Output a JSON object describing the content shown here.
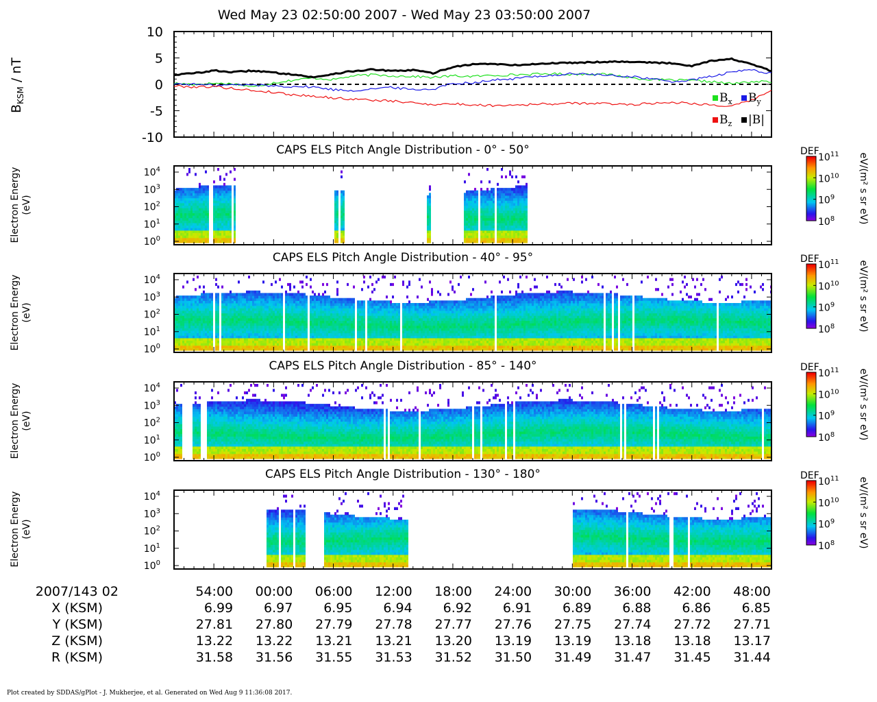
{
  "header": {
    "title": "Wed May 23 02:50:00 2007 - Wed May 23 03:50:00 2007"
  },
  "colors": {
    "bx": "#1ee01e",
    "by": "#1a1ae6",
    "bz": "#ee1111",
    "btot": "#000000"
  },
  "chart_data": [
    {
      "type": "line",
      "ylabel": "B",
      "ylabel_sub": "KSM",
      "ylabel_unit": " / nT",
      "ylim": [
        -10,
        10
      ],
      "yticks": [
        "10",
        "5",
        "0",
        "-5",
        "-10"
      ],
      "x_minutes": [
        0,
        60
      ],
      "legend": [
        {
          "label": "B",
          "sub": "x",
          "color": "#1ee01e"
        },
        {
          "label": "B",
          "sub": "y",
          "color": "#1a1ae6"
        },
        {
          "label": "B",
          "sub": "z",
          "color": "#ee1111"
        },
        {
          "label": "|B|",
          "sub": "",
          "color": "#000000"
        }
      ],
      "legend_placement": "bottom-right",
      "series": [
        {
          "key": "bx",
          "color": "#1ee01e",
          "x": [
            0,
            2,
            4,
            6,
            8,
            10,
            12,
            14,
            16,
            18,
            20,
            22,
            24,
            26,
            28,
            30,
            32,
            34,
            36,
            38,
            40,
            42,
            44,
            46,
            48,
            50,
            52,
            54,
            56,
            58,
            60
          ],
          "values": [
            0.2,
            0.0,
            0.2,
            0.1,
            -0.5,
            0.3,
            0.8,
            1.2,
            0.9,
            1.6,
            1.8,
            1.6,
            1.5,
            1.3,
            1.6,
            1.5,
            1.7,
            1.8,
            1.9,
            2.0,
            1.9,
            2.0,
            1.8,
            1.2,
            0.9,
            0.8,
            0.7,
            0.5,
            0.1,
            0.5,
            0.5
          ]
        },
        {
          "key": "by",
          "color": "#1a1ae6",
          "x": [
            0,
            2,
            4,
            6,
            8,
            10,
            12,
            14,
            16,
            18,
            20,
            22,
            24,
            26,
            28,
            30,
            32,
            34,
            36,
            38,
            40,
            42,
            44,
            46,
            48,
            50,
            52,
            54,
            56,
            58,
            60
          ],
          "values": [
            0.1,
            0.0,
            -0.2,
            -0.1,
            -0.1,
            -0.3,
            -0.4,
            -0.5,
            -1.0,
            -1.2,
            -0.8,
            -0.6,
            -1.0,
            -0.9,
            0.2,
            0.3,
            0.8,
            1.0,
            1.5,
            1.7,
            2.0,
            1.9,
            1.6,
            1.5,
            1.0,
            0.5,
            0.8,
            1.5,
            2.3,
            2.8,
            2.0
          ]
        },
        {
          "key": "bz",
          "color": "#ee1111",
          "x": [
            0,
            2,
            4,
            6,
            8,
            10,
            12,
            14,
            16,
            18,
            20,
            22,
            24,
            26,
            28,
            30,
            32,
            34,
            36,
            38,
            40,
            42,
            44,
            46,
            48,
            50,
            52,
            54,
            56,
            58,
            60
          ],
          "values": [
            -0.3,
            -0.5,
            -0.4,
            -0.8,
            -1.2,
            -1.5,
            -2.0,
            -2.2,
            -2.6,
            -2.8,
            -3.0,
            -3.2,
            -3.5,
            -3.8,
            -3.7,
            -3.9,
            -4.0,
            -3.9,
            -3.8,
            -3.7,
            -3.6,
            -3.6,
            -3.7,
            -3.8,
            -3.6,
            -3.4,
            -3.6,
            -3.9,
            -4.2,
            -3.0,
            -1.2
          ]
        },
        {
          "key": "btot",
          "color": "#000000",
          "x": [
            0,
            2,
            4,
            6,
            8,
            10,
            12,
            14,
            16,
            18,
            20,
            22,
            24,
            26,
            28,
            30,
            32,
            34,
            36,
            38,
            40,
            42,
            44,
            46,
            48,
            50,
            52,
            54,
            56,
            58,
            60
          ],
          "values": [
            1.8,
            2.1,
            2.6,
            2.3,
            2.6,
            2.2,
            1.9,
            1.3,
            2.0,
            2.5,
            2.8,
            2.5,
            2.7,
            2.1,
            3.3,
            3.8,
            3.9,
            3.6,
            3.8,
            4.0,
            4.1,
            4.2,
            4.3,
            4.3,
            4.1,
            4.0,
            3.5,
            4.5,
            4.8,
            3.8,
            2.5
          ]
        }
      ]
    },
    {
      "type": "heatmap",
      "title": "CAPS ELS Pitch Angle Distribution - 0° - 50°",
      "ylabel": [
        "Electron Energy",
        "(eV)"
      ],
      "ytick_powers": [
        "0",
        "1",
        "2",
        "3",
        "4"
      ],
      "colorbar": {
        "label": "DEF",
        "unit": "eV/(m² s sr eV)",
        "tick_powers": [
          "8",
          "9",
          "10",
          "11"
        ],
        "range": [
          8,
          11
        ]
      },
      "coverage_minutes": [
        [
          0.0,
          3.4
        ],
        [
          3.9,
          5.6
        ],
        [
          5.9,
          6.0
        ],
        [
          16.0,
          17.0
        ],
        [
          25.3,
          25.8
        ],
        [
          29.0,
          35.5
        ]
      ],
      "mid_band_log_energy": 1.5
    },
    {
      "type": "heatmap",
      "title": "CAPS ELS Pitch Angle Distribution - 40° - 95°",
      "ylabel": [
        "Electron Energy",
        "(eV)"
      ],
      "ytick_powers": [
        "0",
        "1",
        "2",
        "3",
        "4"
      ],
      "colorbar": {
        "label": "DEF",
        "unit": "eV/(m² s sr eV)",
        "tick_powers": [
          "8",
          "9",
          "10",
          "11"
        ],
        "range": [
          8,
          11
        ]
      },
      "coverage_minutes": [
        [
          0.0,
          60.0
        ]
      ],
      "mid_band_log_energy": 1.5
    },
    {
      "type": "heatmap",
      "title": "CAPS ELS Pitch Angle Distribution - 85° - 140°",
      "ylabel": [
        "Electron Energy",
        "(eV)"
      ],
      "ytick_powers": [
        "0",
        "1",
        "2",
        "3",
        "4"
      ],
      "colorbar": {
        "label": "DEF",
        "unit": "eV/(m² s sr eV)",
        "tick_powers": [
          "8",
          "9",
          "10",
          "11"
        ],
        "range": [
          8,
          11
        ]
      },
      "coverage_minutes": [
        [
          0.0,
          0.8
        ],
        [
          1.7,
          2.5
        ],
        [
          3.1,
          60.0
        ]
      ],
      "mid_band_log_energy": 1.3
    },
    {
      "type": "heatmap",
      "title": "CAPS ELS Pitch Angle Distribution - 130° - 180°",
      "ylabel": [
        "Electron Energy",
        "(eV)"
      ],
      "ytick_powers": [
        "0",
        "1",
        "2",
        "3",
        "4"
      ],
      "colorbar": {
        "label": "DEF",
        "unit": "eV/(m² s sr eV)",
        "tick_powers": [
          "8",
          "9",
          "10",
          "11"
        ],
        "range": [
          8,
          11
        ]
      },
      "coverage_minutes": [
        [
          9.1,
          11.8
        ],
        [
          12.1,
          13.2
        ],
        [
          15.0,
          23.5
        ],
        [
          40.0,
          60.0
        ]
      ],
      "mid_band_log_energy": 1.6
    }
  ],
  "time_axis": {
    "row_label": "2007/143 02",
    "ticks": [
      "54:00",
      "00:00",
      "06:00",
      "12:00",
      "18:00",
      "24:00",
      "30:00",
      "36:00",
      "42:00",
      "48:00"
    ],
    "tick_minutes": [
      4,
      10,
      16,
      22,
      28,
      34,
      40,
      46,
      52,
      58
    ]
  },
  "ephemeris": [
    {
      "label": "X (KSM)",
      "values": [
        "6.99",
        "6.97",
        "6.95",
        "6.94",
        "6.92",
        "6.91",
        "6.89",
        "6.88",
        "6.86",
        "6.85"
      ]
    },
    {
      "label": "Y (KSM)",
      "values": [
        "27.81",
        "27.80",
        "27.79",
        "27.78",
        "27.77",
        "27.76",
        "27.75",
        "27.74",
        "27.72",
        "27.71"
      ]
    },
    {
      "label": "Z (KSM)",
      "values": [
        "13.22",
        "13.22",
        "13.21",
        "13.21",
        "13.20",
        "13.19",
        "13.19",
        "13.18",
        "13.18",
        "13.17"
      ]
    },
    {
      "label": "R (KSM)",
      "values": [
        "31.58",
        "31.56",
        "31.55",
        "31.53",
        "31.52",
        "31.50",
        "31.49",
        "31.47",
        "31.45",
        "31.44"
      ]
    }
  ],
  "footer": {
    "text": "Plot created by SDDAS/gPlot - J. Mukherjee, et al.  Generated on Wed Aug 9 11:36:08 2017."
  }
}
